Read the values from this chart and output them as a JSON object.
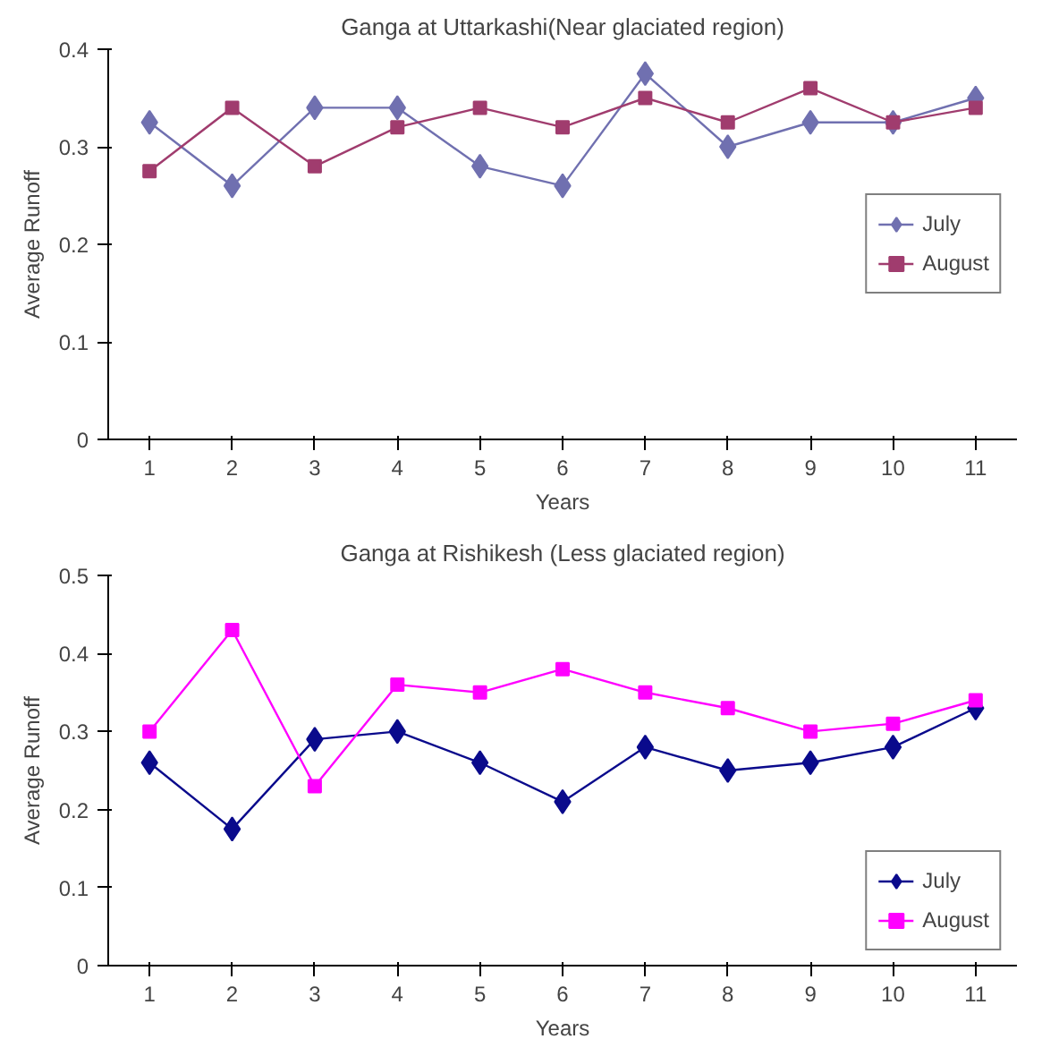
{
  "chart_data": [
    {
      "type": "line",
      "title": "Ganga at Uttarkashi(Near glaciated region)",
      "xlabel": "Years",
      "ylabel": "Average Runoff",
      "categories": [
        "1",
        "2",
        "3",
        "4",
        "5",
        "6",
        "7",
        "8",
        "9",
        "10",
        "11"
      ],
      "ylim": [
        0,
        0.4
      ],
      "yticks": [
        0,
        0.1,
        0.2,
        0.3,
        0.4
      ],
      "grid": false,
      "legend": "right",
      "series": [
        {
          "name": "July",
          "color": "#7070b0",
          "marker": "diamond",
          "values": [
            0.325,
            0.26,
            0.34,
            0.34,
            0.28,
            0.26,
            0.375,
            0.3,
            0.325,
            0.325,
            0.35
          ]
        },
        {
          "name": "August",
          "color": "#a03c6e",
          "marker": "square",
          "values": [
            0.275,
            0.34,
            0.28,
            0.32,
            0.34,
            0.32,
            0.35,
            0.325,
            0.36,
            0.325,
            0.34
          ]
        }
      ]
    },
    {
      "type": "line",
      "title": "Ganga at Rishikesh (Less glaciated region)",
      "xlabel": "Years",
      "ylabel": "Average Runoff",
      "categories": [
        "1",
        "2",
        "3",
        "4",
        "5",
        "6",
        "7",
        "8",
        "9",
        "10",
        "11"
      ],
      "ylim": [
        0,
        0.5
      ],
      "yticks": [
        0,
        0.1,
        0.2,
        0.3,
        0.4,
        0.5
      ],
      "grid": false,
      "legend": "bottom right",
      "series": [
        {
          "name": "July",
          "color": "#0a0a8c",
          "marker": "diamond",
          "values": [
            0.26,
            0.175,
            0.29,
            0.3,
            0.26,
            0.21,
            0.28,
            0.25,
            0.26,
            0.28,
            0.33
          ]
        },
        {
          "name": "August",
          "color": "#ff00ff",
          "marker": "square",
          "values": [
            0.3,
            0.43,
            0.23,
            0.36,
            0.35,
            0.38,
            0.35,
            0.33,
            0.3,
            0.31,
            0.34
          ]
        }
      ]
    }
  ]
}
